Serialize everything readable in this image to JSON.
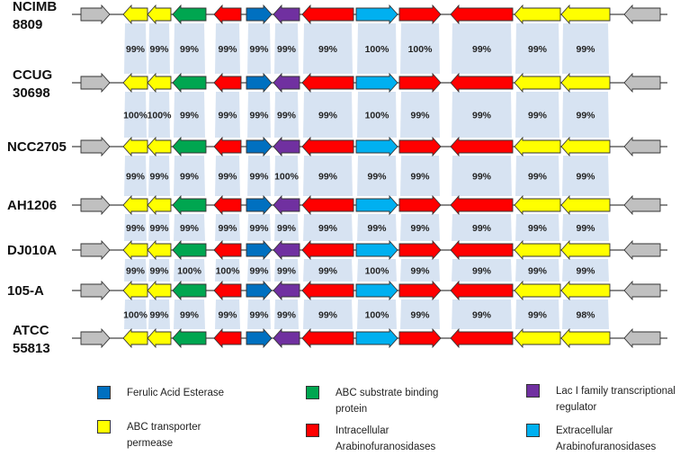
{
  "colors": {
    "gray": "#c0c0c0",
    "yellow": "#ffff00",
    "green": "#00a650",
    "red": "#ff0000",
    "blue": "#0070c0",
    "purple": "#7030a0",
    "cyan": "#00b0f0",
    "band": "#c9d9ee"
  },
  "strains": [
    [
      "NCIMB",
      "8809"
    ],
    [
      "CCUG",
      "30698"
    ],
    [
      "NCC2705"
    ],
    [
      "AH1206"
    ],
    [
      "DJ010A"
    ],
    [
      "105-A"
    ],
    [
      "ATCC",
      "55813"
    ]
  ],
  "genes": [
    {
      "color": "gray",
      "dir": "right"
    },
    {
      "color": "yellow",
      "dir": "left"
    },
    {
      "color": "yellow",
      "dir": "left"
    },
    {
      "color": "green",
      "dir": "left"
    },
    {
      "color": "red",
      "dir": "left"
    },
    {
      "color": "blue",
      "dir": "right"
    },
    {
      "color": "purple",
      "dir": "left"
    },
    {
      "color": "red",
      "dir": "left"
    },
    {
      "color": "cyan",
      "dir": "right"
    },
    {
      "color": "red",
      "dir": "right"
    },
    {
      "color": "red",
      "dir": "left"
    },
    {
      "color": "yellow",
      "dir": "left"
    },
    {
      "color": "yellow",
      "dir": "left"
    },
    {
      "color": "gray",
      "dir": "left"
    }
  ],
  "identity": [
    [
      "99%",
      "99%",
      "99%",
      "99%",
      "99%",
      "99%",
      "99%",
      "100%",
      "100%",
      "99%",
      "99%",
      "99%"
    ],
    [
      "100%",
      "100%",
      "99%",
      "99%",
      "99%",
      "99%",
      "99%",
      "100%",
      "99%",
      "99%",
      "99%",
      "99%"
    ],
    [
      "99%",
      "99%",
      "99%",
      "99%",
      "99%",
      "100%",
      "99%",
      "99%",
      "99%",
      "99%",
      "99%",
      "99%"
    ],
    [
      "99%",
      "99%",
      "99%",
      "99%",
      "99%",
      "99%",
      "99%",
      "99%",
      "99%",
      "99%",
      "99%",
      "99%"
    ],
    [
      "99%",
      "99%",
      "100%",
      "100%",
      "99%",
      "99%",
      "99%",
      "100%",
      "99%",
      "99%",
      "99%",
      "99%"
    ],
    [
      "100%",
      "99%",
      "99%",
      "99%",
      "99%",
      "99%",
      "99%",
      "100%",
      "99%",
      "99%",
      "99%",
      "98%"
    ]
  ],
  "legend": [
    {
      "color": "blue",
      "label": "Ferulic Acid Esterase"
    },
    {
      "color": "green",
      "label": "ABC substrate binding protein"
    },
    {
      "color": "purple",
      "label": "Lac I family transcriptional regulator"
    },
    {
      "color": "yellow",
      "label": "ABC transporter permease"
    },
    {
      "color": "red",
      "label": "Intracellular Arabinofuranosidases"
    },
    {
      "color": "cyan",
      "label": "Extracellular Arabinofuranosidases"
    }
  ]
}
